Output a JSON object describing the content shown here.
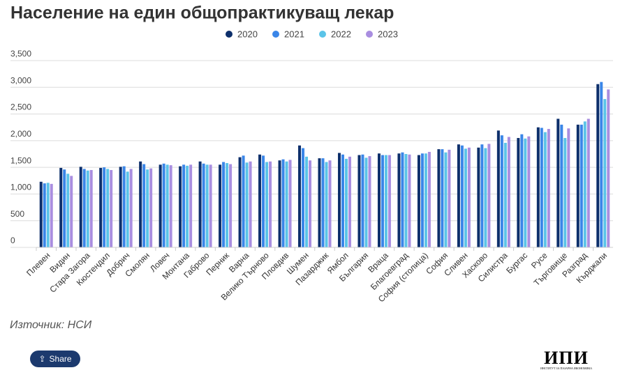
{
  "chart_data": {
    "type": "bar",
    "title": "Население на един общопрактикуващ лекар",
    "categories": [
      "Плевен",
      "Видин",
      "Стара Загора",
      "Кюстендил",
      "Добрич",
      "Смолян",
      "Ловеч",
      "Монтана",
      "Габрово",
      "Перник",
      "Варна",
      "Велико Търново",
      "Пловдив",
      "Шумен",
      "Пазарджик",
      "Ямбол",
      "България",
      "Враца",
      "Благоевград",
      "София (столица)",
      "София",
      "Сливен",
      "Хасково",
      "Силистра",
      "Бургас",
      "Русе",
      "Търговище",
      "Разград",
      "Кърджали"
    ],
    "series": [
      {
        "name": "2020",
        "color": "#0d2f6b",
        "values": [
          1230,
          1490,
          1510,
          1490,
          1510,
          1610,
          1550,
          1520,
          1610,
          1550,
          1690,
          1740,
          1630,
          1910,
          1670,
          1770,
          1730,
          1760,
          1760,
          1730,
          1840,
          1930,
          1870,
          2190,
          2050,
          2250,
          2410,
          2300,
          3060
        ]
      },
      {
        "name": "2021",
        "color": "#3a86e8",
        "values": [
          1200,
          1460,
          1470,
          1500,
          1520,
          1560,
          1570,
          1550,
          1570,
          1600,
          1720,
          1720,
          1650,
          1860,
          1670,
          1740,
          1740,
          1730,
          1780,
          1760,
          1840,
          1910,
          1930,
          2100,
          2120,
          2240,
          2300,
          2300,
          3100
        ]
      },
      {
        "name": "2022",
        "color": "#5bc4e8",
        "values": [
          1210,
          1380,
          1440,
          1470,
          1420,
          1460,
          1550,
          1530,
          1550,
          1580,
          1590,
          1600,
          1610,
          1700,
          1600,
          1660,
          1680,
          1730,
          1750,
          1760,
          1780,
          1850,
          1860,
          1960,
          2040,
          2160,
          2050,
          2360,
          2780
        ]
      },
      {
        "name": "2023",
        "color": "#a98ee0",
        "values": [
          1190,
          1340,
          1450,
          1450,
          1470,
          1480,
          1540,
          1550,
          1550,
          1560,
          1610,
          1610,
          1640,
          1630,
          1630,
          1700,
          1710,
          1730,
          1740,
          1790,
          1830,
          1870,
          1940,
          2070,
          2080,
          2220,
          2230,
          2410,
          2960
        ]
      }
    ],
    "ylim": [
      0,
      3500
    ],
    "yticks": [
      0,
      500,
      {
        "value": 1000,
        "label": "1,000"
      },
      {
        "value": 1500,
        "label": "1,500"
      },
      {
        "value": 2000,
        "label": "2,000"
      },
      {
        "value": 2500,
        "label": "2,500"
      },
      {
        "value": 3000,
        "label": "3,000"
      },
      {
        "value": 3500,
        "label": "3,500"
      }
    ],
    "grid": true,
    "source": "Източник: НСИ"
  },
  "share": "Share",
  "logo": {
    "name": "ИПИ",
    "subtitle": "ИНСТИТУТ ЗА ПАЗАРНА ИКОНОМИКА"
  }
}
